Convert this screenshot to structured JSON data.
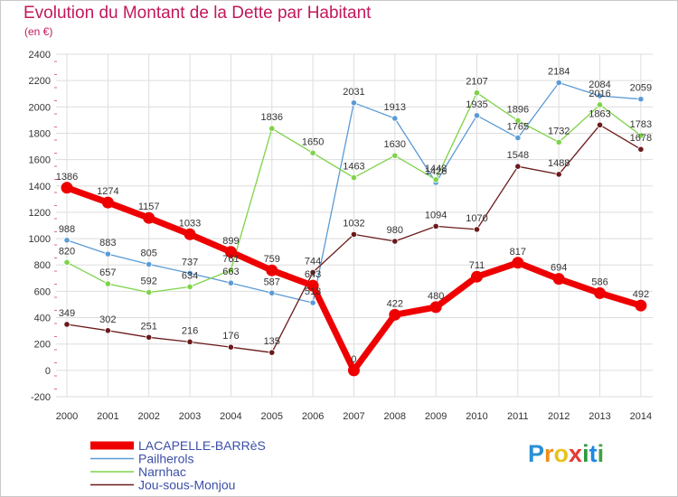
{
  "title": "Evolution du Montant de la Dette par Habitant",
  "subtitle": "(en €)",
  "logo": {
    "text": "Proxiti",
    "colors": [
      "#2a8fd6",
      "#f28c1b",
      "#e8c21c",
      "#e53935",
      "#2e9c3f",
      "#1e88e5",
      "#43a047"
    ]
  },
  "colors": {
    "title": "#c2185b",
    "grid": "#dddddd",
    "axis_text": "#333333",
    "legend_text": "#3b4fa8"
  },
  "chart_data": {
    "type": "line",
    "categories": [
      "2000",
      "2001",
      "2002",
      "2003",
      "2004",
      "2005",
      "2006",
      "2007",
      "2008",
      "2009",
      "2010",
      "2011",
      "2012",
      "2013",
      "2014"
    ],
    "ylim": [
      -200,
      2400
    ],
    "yticks": [
      -200,
      0,
      200,
      400,
      600,
      800,
      1000,
      1200,
      1400,
      1600,
      1800,
      2000,
      2200,
      2400
    ],
    "grid": true,
    "legend_position": "bottom-left",
    "series": [
      {
        "name": "LACAPELLE-BARRèS",
        "color": "#ee0000",
        "emphasis": true,
        "values": [
          1386,
          1274,
          1157,
          1033,
          899,
          759,
          643,
          0,
          422,
          480,
          711,
          817,
          694,
          586,
          492
        ]
      },
      {
        "name": "Pailherols",
        "color": "#5b9bd5",
        "emphasis": false,
        "values": [
          988,
          883,
          805,
          737,
          663,
          587,
          513,
          2031,
          1913,
          1426,
          1935,
          1765,
          2184,
          2084,
          2059
        ]
      },
      {
        "name": "Narnhac",
        "color": "#7ed348",
        "emphasis": false,
        "values": [
          820,
          657,
          592,
          634,
          761,
          1836,
          1650,
          1463,
          1630,
          1448,
          2107,
          1896,
          1732,
          2016,
          1783
        ]
      },
      {
        "name": "Jou-sous-Monjou",
        "color": "#6b1a1a",
        "emphasis": false,
        "values": [
          349,
          302,
          251,
          216,
          176,
          135,
          744,
          1032,
          980,
          1094,
          1070,
          1548,
          1488,
          1863,
          1678
        ]
      }
    ]
  }
}
